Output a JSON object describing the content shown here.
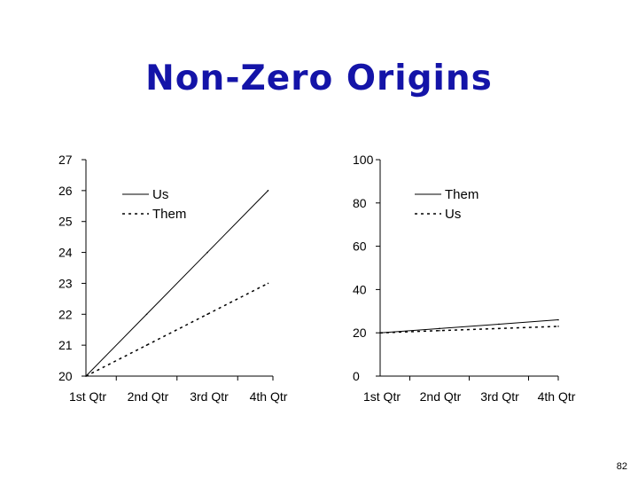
{
  "slide": {
    "title": "Non-Zero Origins",
    "page_number": "82"
  },
  "chart_data": [
    {
      "type": "line",
      "categories": [
        "1st Qtr",
        "2nd Qtr",
        "3rd Qtr",
        "4th Qtr"
      ],
      "ylim": [
        20,
        27
      ],
      "yticks": [
        "20",
        "21",
        "22",
        "23",
        "24",
        "25",
        "26",
        "27"
      ],
      "legend_position": "top-left",
      "series": [
        {
          "name": "Us",
          "values": [
            20,
            22,
            24,
            26
          ],
          "style": "solid",
          "color": "#000000"
        },
        {
          "name": "Them",
          "values": [
            20,
            21,
            22,
            23
          ],
          "style": "dashed",
          "color": "#000000"
        }
      ]
    },
    {
      "type": "line",
      "categories": [
        "1st Qtr",
        "2nd Qtr",
        "3rd Qtr",
        "4th Qtr"
      ],
      "ylim": [
        0,
        100
      ],
      "yticks": [
        "0",
        "20",
        "40",
        "60",
        "80",
        "100"
      ],
      "legend_position": "top-right",
      "series": [
        {
          "name": "Them",
          "values": [
            20,
            22,
            24,
            26
          ],
          "style": "solid",
          "color": "#000000"
        },
        {
          "name": "Us",
          "values": [
            20,
            21,
            22,
            23
          ],
          "style": "dashed",
          "color": "#000000"
        }
      ]
    }
  ]
}
